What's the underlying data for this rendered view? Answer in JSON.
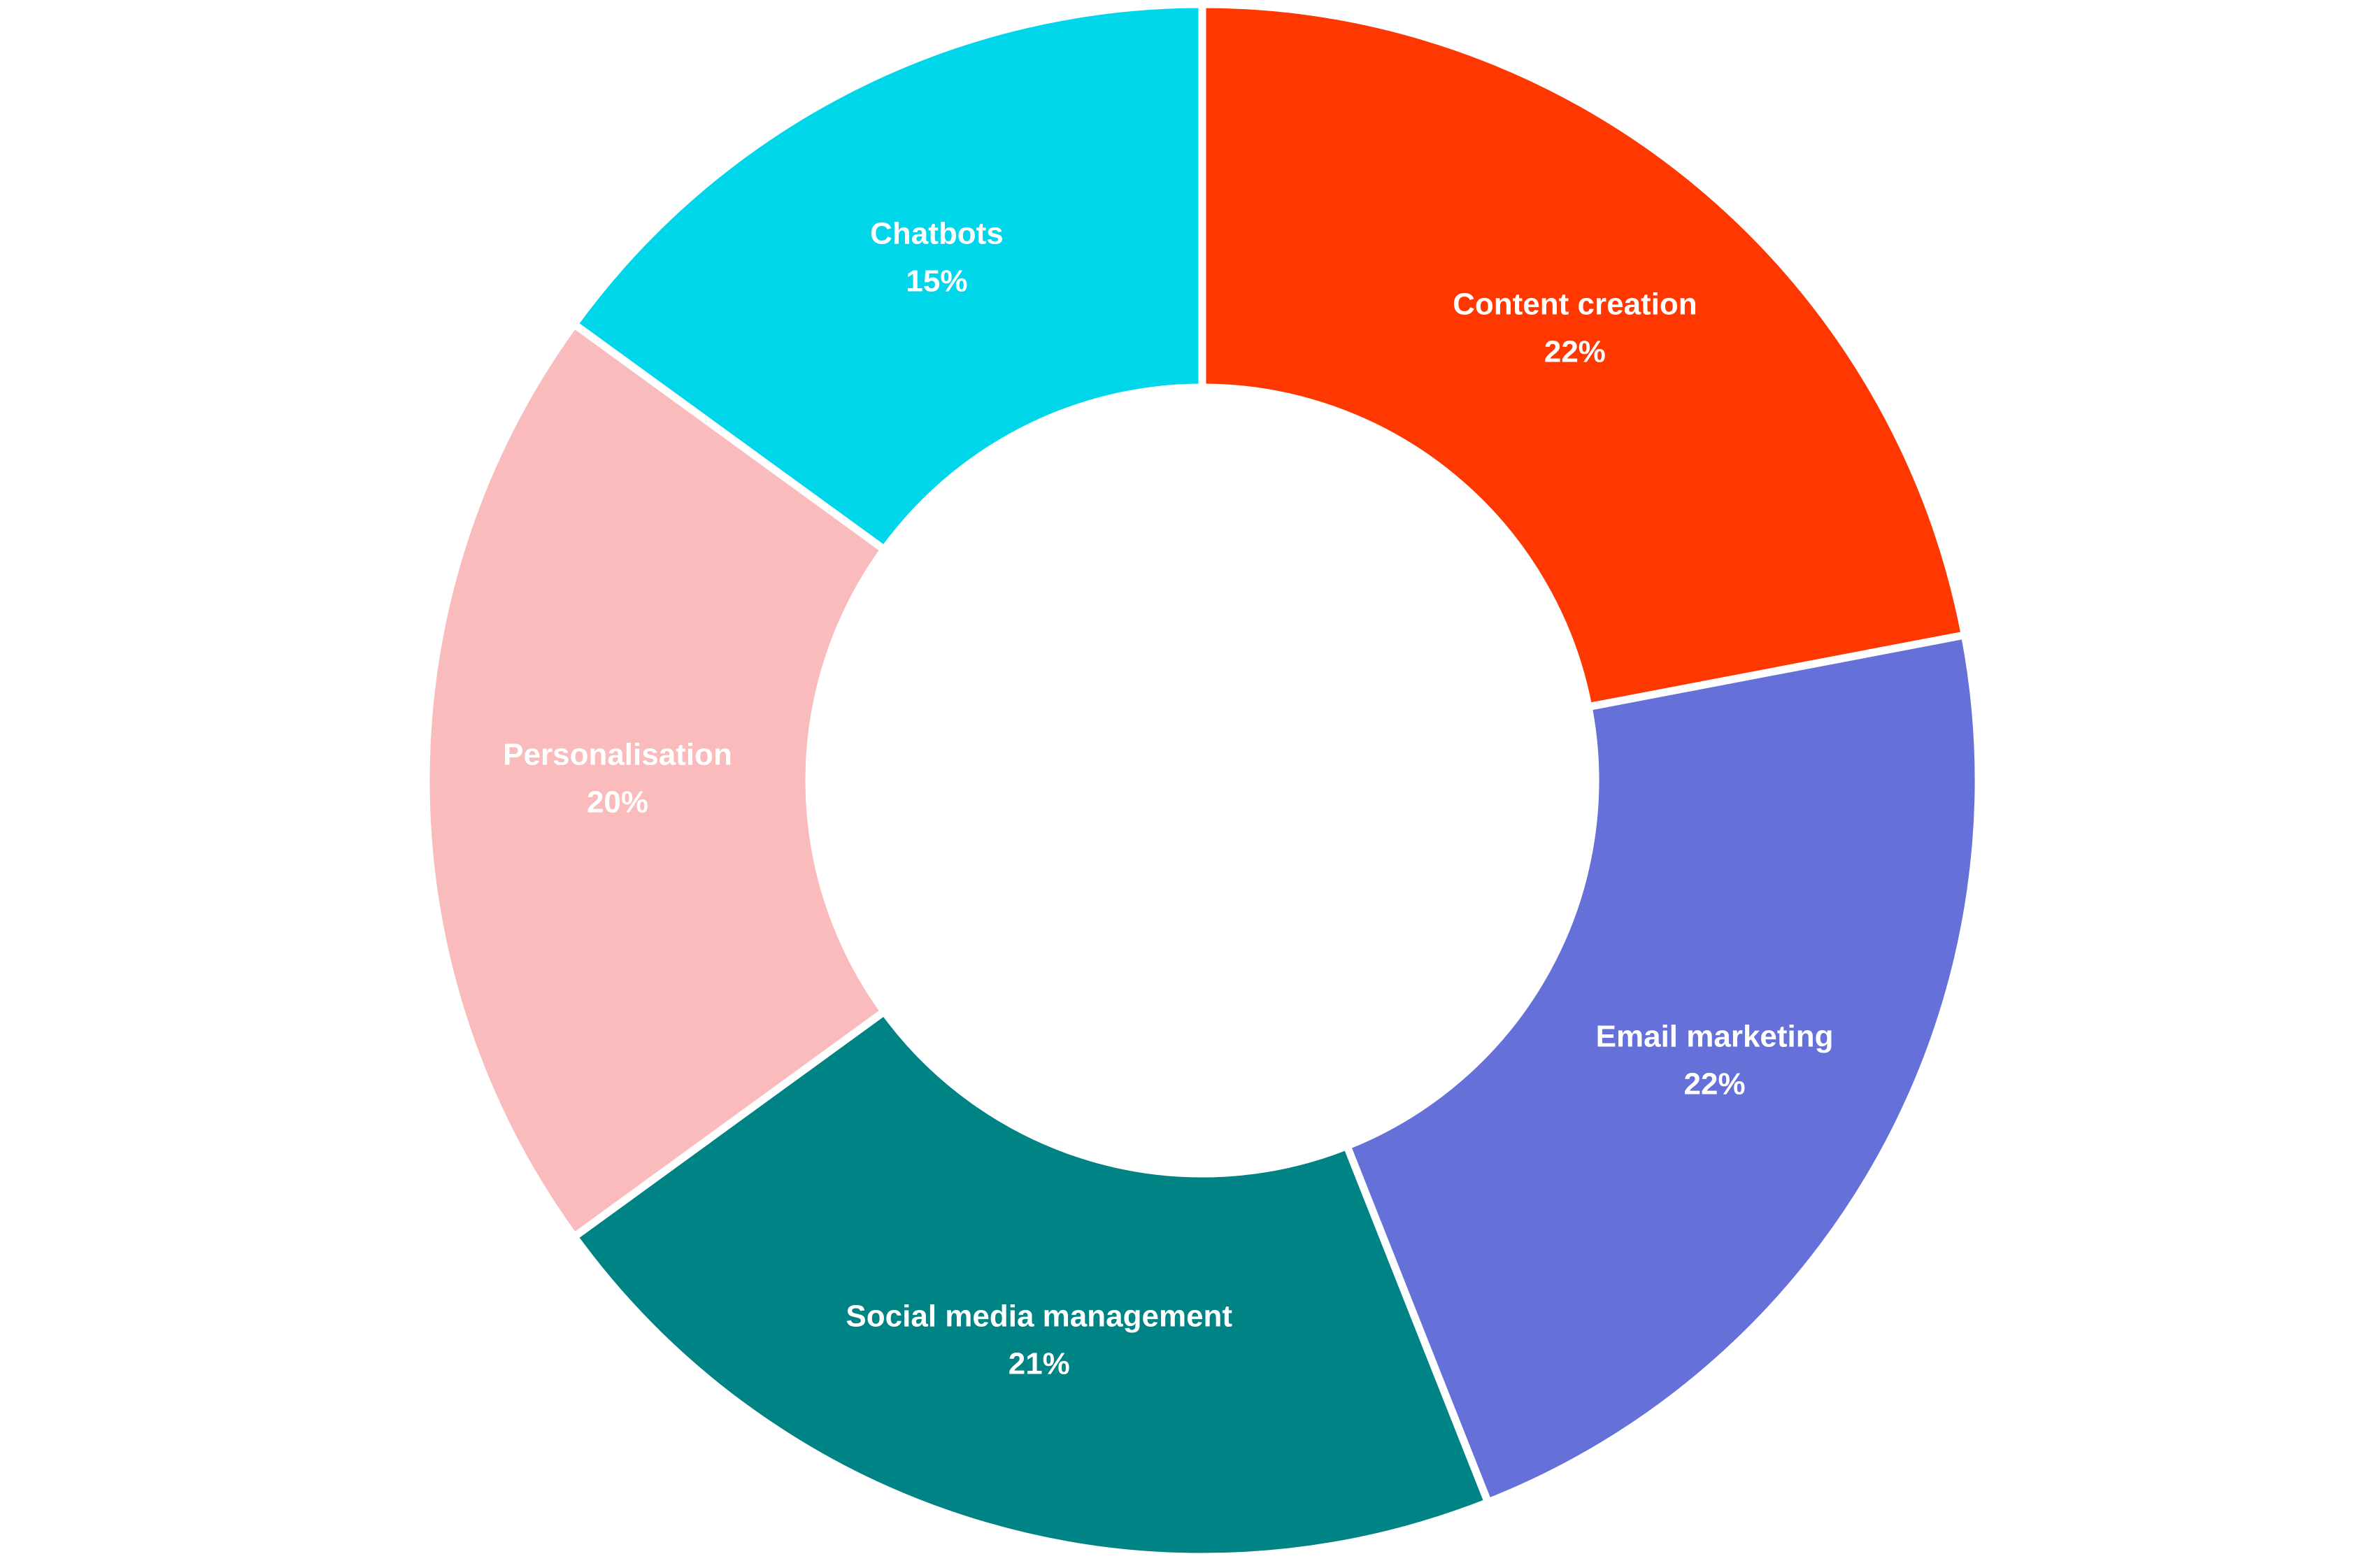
{
  "chart_data": {
    "type": "donut",
    "categories": [
      "Content creation",
      "Email marketing",
      "Social media management",
      "Personalisation",
      "Chatbots"
    ],
    "values": [
      22,
      22,
      21,
      20,
      15
    ],
    "value_labels": [
      "22%",
      "22%",
      "21%",
      "20%",
      "15%"
    ],
    "colors": [
      "#ff3700",
      "#6570d8",
      "#008385",
      "#f9bbbc",
      "#00d6ea"
    ]
  }
}
